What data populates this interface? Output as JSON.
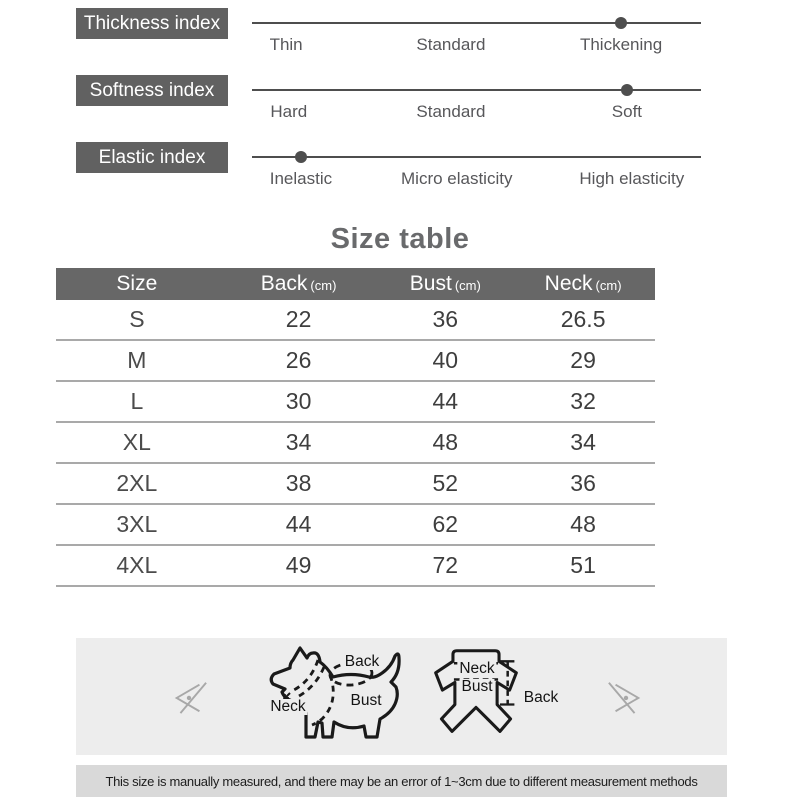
{
  "indexes": {
    "rows": [
      {
        "label": "Thickness index",
        "options": [
          "Thin",
          "Standard",
          "Thickening"
        ],
        "selected": 2
      },
      {
        "label": "Softness index",
        "options": [
          "Hard",
          "Standard",
          "Soft"
        ],
        "selected": 2
      },
      {
        "label": "Elastic index",
        "options": [
          "Inelastic",
          "Micro elasticity",
          "High elasticity"
        ],
        "selected": 0
      }
    ]
  },
  "size_table": {
    "title": "Size table",
    "columns": [
      {
        "label": "Size",
        "unit": ""
      },
      {
        "label": "Back",
        "unit": "(cm)"
      },
      {
        "label": "Bust",
        "unit": "(cm)"
      },
      {
        "label": "Neck",
        "unit": "(cm)"
      }
    ],
    "rows": [
      {
        "size": "S",
        "back": "22",
        "bust": "36",
        "neck": "26.5"
      },
      {
        "size": "M",
        "back": "26",
        "bust": "40",
        "neck": "29"
      },
      {
        "size": "L",
        "back": "30",
        "bust": "44",
        "neck": "32"
      },
      {
        "size": "XL",
        "back": "34",
        "bust": "48",
        "neck": "34"
      },
      {
        "size": "2XL",
        "back": "38",
        "bust": "52",
        "neck": "36"
      },
      {
        "size": "3XL",
        "back": "44",
        "bust": "62",
        "neck": "48"
      },
      {
        "size": "4XL",
        "back": "49",
        "bust": "72",
        "neck": "51"
      }
    ]
  },
  "measure_guide": {
    "dog_labels": {
      "back": "Back",
      "neck": "Neck",
      "bust": "Bust"
    },
    "garment_labels": {
      "neck": "Neck",
      "bust": "Bust",
      "back": "Back"
    }
  },
  "footer": {
    "note": "This size is manually measured, and there may be an error of 1~3cm due to different measurement methods"
  },
  "colors": {
    "label_box": "#616161",
    "table_header": "#676767",
    "line": "#4e4e4e",
    "diagram_bg": "#ededed",
    "footer_bg": "#d9d9d9"
  }
}
